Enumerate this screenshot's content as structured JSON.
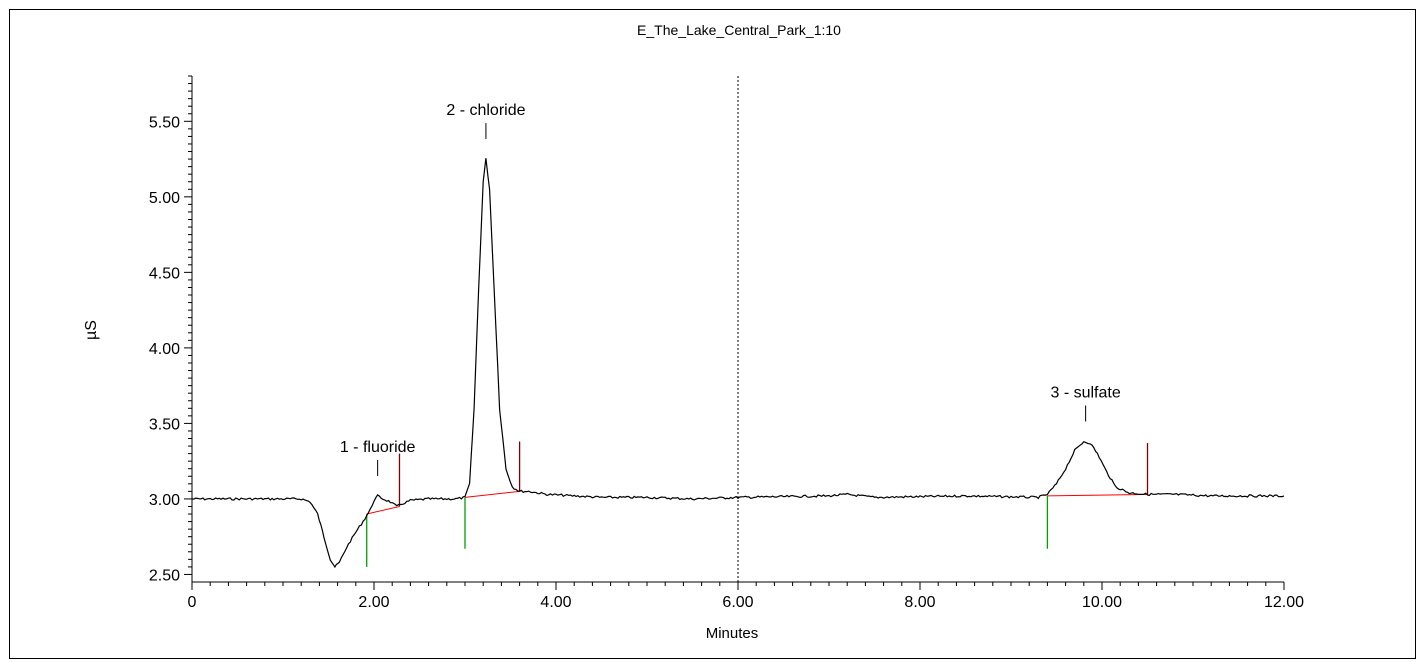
{
  "chart_data": {
    "type": "line",
    "title": "E_The_Lake_Central_Park_1:10",
    "xlabel": "Minutes",
    "ylabel": "µS",
    "xlim": [
      0,
      12
    ],
    "ylim": [
      2.45,
      5.8
    ],
    "x_ticks": [
      {
        "value": 0,
        "label": "0"
      },
      {
        "value": 2,
        "label": "2.00"
      },
      {
        "value": 4,
        "label": "4.00"
      },
      {
        "value": 6,
        "label": "6.00"
      },
      {
        "value": 8,
        "label": "8.00"
      },
      {
        "value": 10,
        "label": "10.00"
      },
      {
        "value": 12,
        "label": "12.00"
      }
    ],
    "y_ticks": [
      {
        "value": 2.5,
        "label": "2.50"
      },
      {
        "value": 3.0,
        "label": "3.00"
      },
      {
        "value": 3.5,
        "label": "3.50"
      },
      {
        "value": 4.0,
        "label": "4.00"
      },
      {
        "value": 4.5,
        "label": "4.50"
      },
      {
        "value": 5.0,
        "label": "5.00"
      },
      {
        "value": 5.5,
        "label": "5.50"
      }
    ],
    "divider_x": 6.0,
    "series": [
      {
        "color": "#000000",
        "points": [
          [
            0,
            3.0
          ],
          [
            0.5,
            3.0
          ],
          [
            1.0,
            3.0
          ],
          [
            1.2,
            3.0
          ],
          [
            1.3,
            2.98
          ],
          [
            1.38,
            2.9
          ],
          [
            1.45,
            2.75
          ],
          [
            1.52,
            2.6
          ],
          [
            1.57,
            2.55
          ],
          [
            1.62,
            2.58
          ],
          [
            1.7,
            2.68
          ],
          [
            1.8,
            2.78
          ],
          [
            1.9,
            2.87
          ],
          [
            1.96,
            2.93
          ],
          [
            2.0,
            2.99
          ],
          [
            2.04,
            3.02
          ],
          [
            2.1,
            3.0
          ],
          [
            2.18,
            2.98
          ],
          [
            2.25,
            2.95
          ],
          [
            2.32,
            2.97
          ],
          [
            2.4,
            2.99
          ],
          [
            2.6,
            3.0
          ],
          [
            2.9,
            3.0
          ],
          [
            3.0,
            3.01
          ],
          [
            3.05,
            3.1
          ],
          [
            3.1,
            3.6
          ],
          [
            3.15,
            4.4
          ],
          [
            3.2,
            5.1
          ],
          [
            3.23,
            5.25
          ],
          [
            3.27,
            5.05
          ],
          [
            3.32,
            4.4
          ],
          [
            3.38,
            3.6
          ],
          [
            3.45,
            3.2
          ],
          [
            3.52,
            3.08
          ],
          [
            3.6,
            3.05
          ],
          [
            3.7,
            3.05
          ],
          [
            3.9,
            3.03
          ],
          [
            4.5,
            3.01
          ],
          [
            5.0,
            3.01
          ],
          [
            5.5,
            3.0
          ],
          [
            6.0,
            3.01
          ],
          [
            7.0,
            3.02
          ],
          [
            7.2,
            3.03
          ],
          [
            7.5,
            3.01
          ],
          [
            8.5,
            3.02
          ],
          [
            9.3,
            3.01
          ],
          [
            9.4,
            3.03
          ],
          [
            9.5,
            3.1
          ],
          [
            9.6,
            3.2
          ],
          [
            9.7,
            3.32
          ],
          [
            9.8,
            3.38
          ],
          [
            9.87,
            3.37
          ],
          [
            9.95,
            3.3
          ],
          [
            10.05,
            3.18
          ],
          [
            10.15,
            3.08
          ],
          [
            10.3,
            3.04
          ],
          [
            10.5,
            3.03
          ],
          [
            10.8,
            3.03
          ],
          [
            11.2,
            3.02
          ],
          [
            11.6,
            3.02
          ],
          [
            12.0,
            3.02
          ]
        ]
      }
    ],
    "baselines": [
      {
        "color": "#ff0000",
        "points": [
          [
            1.92,
            2.9
          ],
          [
            2.28,
            2.95
          ]
        ]
      },
      {
        "color": "#ff0000",
        "points": [
          [
            3.0,
            3.01
          ],
          [
            3.6,
            3.05
          ]
        ]
      },
      {
        "color": "#ff0000",
        "points": [
          [
            9.4,
            3.02
          ],
          [
            10.5,
            3.03
          ]
        ]
      }
    ],
    "integration_marks": [
      {
        "x": 1.92,
        "from": 2.55,
        "to": 2.9,
        "color": "#00a000"
      },
      {
        "x": 2.28,
        "from": 2.95,
        "to": 3.3,
        "color": "#800000"
      },
      {
        "x": 3.0,
        "from": 2.67,
        "to": 3.01,
        "color": "#00a000"
      },
      {
        "x": 3.6,
        "from": 3.05,
        "to": 3.38,
        "color": "#800000"
      },
      {
        "x": 9.4,
        "from": 2.67,
        "to": 3.02,
        "color": "#00a000"
      },
      {
        "x": 10.5,
        "from": 3.03,
        "to": 3.37,
        "color": "#800000"
      }
    ],
    "peaks": [
      {
        "label": "1 - fluoride",
        "x": 2.04,
        "y": 3.02
      },
      {
        "label": "2 - chloride",
        "x": 3.23,
        "y": 5.25
      },
      {
        "label": "3 - sulfate",
        "x": 9.82,
        "y": 3.38
      }
    ]
  }
}
